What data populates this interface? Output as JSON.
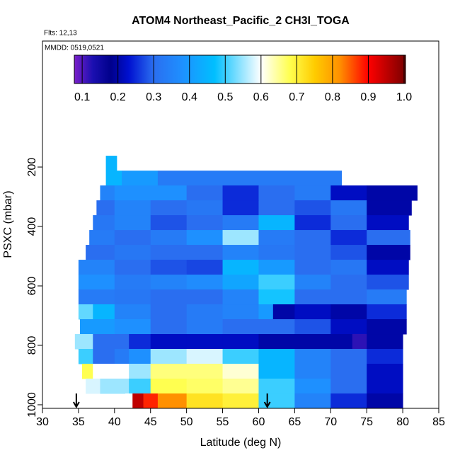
{
  "chart_data": {
    "type": "curtain",
    "title": "ATOM4 Northeast_Pacific_2 CH3I_TOGA",
    "subtitle": "Flts: 12,13",
    "annotation": "MMDD: 0519,0521",
    "x_label": "Latitude (deg N)",
    "y_label": "PSXC (mbar)",
    "xlim": [
      30,
      85
    ],
    "xticks": [
      30,
      35,
      40,
      45,
      50,
      55,
      60,
      65,
      70,
      75,
      80,
      85
    ],
    "ylim": [
      1012,
      -224
    ],
    "yticks": [
      200,
      400,
      600,
      800,
      1000
    ],
    "colorbar": {
      "range": [
        0.078,
        1.004
      ],
      "ticks": [
        0.1,
        0.2,
        0.3,
        0.4,
        0.5,
        0.6,
        0.7,
        0.8,
        0.9,
        {
          "value": 1,
          "label": "1.0"
        }
      ],
      "color_stops": [
        [
          0.078,
          "#7a1fc9"
        ],
        [
          0.13,
          "#1a0fb0"
        ],
        [
          0.18,
          "#00008b"
        ],
        [
          0.23,
          "#0010d0"
        ],
        [
          0.3,
          "#2a6ef0"
        ],
        [
          0.38,
          "#1e90ff"
        ],
        [
          0.47,
          "#00bfff"
        ],
        [
          0.6,
          "#ffffff"
        ],
        [
          0.68,
          "#ffff50"
        ],
        [
          0.75,
          "#ffcc00"
        ],
        [
          0.82,
          "#ff9000"
        ],
        [
          0.9,
          "#ff0000"
        ],
        [
          1.004,
          "#7a0000"
        ]
      ]
    },
    "rows": [
      {
        "p": [
          162,
          212
        ],
        "bins": [
          38.8,
          40.3
        ],
        "values": [
          0.45
        ]
      },
      {
        "p": [
          212,
          262
        ],
        "bins": [
          38.8,
          41,
          46,
          71.5
        ],
        "values": [
          0.45,
          0.4,
          0.33
        ]
      },
      {
        "p": [
          262,
          312
        ],
        "bins": [
          38,
          40,
          45,
          50,
          55,
          60,
          65,
          70,
          75,
          82
        ],
        "values": [
          0.35,
          0.38,
          0.38,
          0.3,
          0.25,
          0.3,
          0.33,
          0.22,
          0.2
        ]
      },
      {
        "p": [
          312,
          362
        ],
        "bins": [
          37.5,
          40,
          45,
          50,
          55,
          60,
          65,
          70,
          75,
          81.2
        ],
        "values": [
          0.3,
          0.35,
          0.3,
          0.32,
          0.25,
          0.3,
          0.28,
          0.32,
          0.2
        ]
      },
      {
        "p": [
          362,
          412
        ],
        "bins": [
          37,
          40,
          45,
          50,
          55,
          60,
          65,
          70,
          75,
          80.8
        ],
        "values": [
          0.32,
          0.35,
          0.28,
          0.3,
          0.33,
          0.45,
          0.25,
          0.3,
          0.22
        ]
      },
      {
        "p": [
          412,
          462
        ],
        "bins": [
          36.5,
          40,
          45,
          50,
          55,
          60,
          65,
          70,
          75,
          81
        ],
        "values": [
          0.33,
          0.3,
          0.33,
          0.38,
          0.55,
          0.33,
          0.3,
          0.25,
          0.3
        ]
      },
      {
        "p": [
          462,
          512
        ],
        "bins": [
          36,
          40,
          45,
          50,
          55,
          60,
          65,
          70,
          75,
          81
        ],
        "values": [
          0.3,
          0.32,
          0.3,
          0.3,
          0.35,
          0.32,
          0.3,
          0.28,
          0.2
        ]
      },
      {
        "p": [
          512,
          562
        ],
        "bins": [
          35,
          40,
          45,
          50,
          55,
          60,
          65,
          70,
          75,
          80.8
        ],
        "values": [
          0.35,
          0.3,
          0.28,
          0.27,
          0.45,
          0.4,
          0.3,
          0.32,
          0.22
        ]
      },
      {
        "p": [
          562,
          612
        ],
        "bins": [
          35,
          40,
          45,
          50,
          55,
          60,
          65,
          70,
          75,
          80.8
        ],
        "values": [
          0.38,
          0.33,
          0.35,
          0.37,
          0.42,
          0.5,
          0.35,
          0.3,
          0.28
        ]
      },
      {
        "p": [
          612,
          662
        ],
        "bins": [
          35,
          40,
          45,
          50,
          55,
          60,
          65,
          70,
          75,
          80.5
        ],
        "values": [
          0.33,
          0.32,
          0.3,
          0.3,
          0.35,
          0.48,
          0.3,
          0.3,
          0.33
        ]
      },
      {
        "p": [
          662,
          712
        ],
        "bins": [
          35,
          37,
          40,
          45,
          50,
          55,
          60,
          62,
          65,
          70,
          75,
          80.5
        ],
        "values": [
          0.52,
          0.45,
          0.35,
          0.3,
          0.33,
          0.35,
          0.4,
          0.2,
          0.22,
          0.2,
          0.25
        ]
      },
      {
        "p": [
          712,
          762
        ],
        "bins": [
          35.2,
          40,
          45,
          50,
          55,
          60,
          65,
          70,
          75,
          80.5
        ],
        "values": [
          0.4,
          0.38,
          0.3,
          0.33,
          0.3,
          0.3,
          0.28,
          0.22,
          0.2
        ]
      },
      {
        "p": [
          762,
          812
        ],
        "bins": [
          34.5,
          37,
          42,
          45,
          50,
          55,
          60,
          65,
          70,
          73,
          75,
          80
        ],
        "values": [
          0.55,
          0.3,
          0.25,
          0.22,
          0.22,
          0.22,
          0.2,
          0.2,
          0.2,
          0.12,
          0.2
        ]
      },
      {
        "p": [
          812,
          862
        ],
        "bins": [
          35,
          37,
          40,
          42,
          45,
          50,
          55,
          60,
          65,
          70,
          75,
          80
        ],
        "values": [
          0.5,
          0.3,
          0.33,
          0.38,
          0.55,
          0.58,
          0.5,
          0.45,
          0.35,
          0.3,
          0.25
        ]
      },
      {
        "p": [
          862,
          912
        ],
        "bins": [
          35.5,
          37,
          42,
          45,
          50,
          55,
          60,
          65,
          70,
          75,
          80
        ],
        "values": [
          0.68,
          0.6,
          0.55,
          0.66,
          0.66,
          0.62,
          0.45,
          0.35,
          0.3,
          0.22
        ]
      },
      {
        "p": [
          912,
          962
        ],
        "bins": [
          36,
          38,
          42,
          45,
          50,
          55,
          60,
          65,
          70,
          75,
          80
        ],
        "values": [
          0.58,
          0.55,
          0.5,
          0.68,
          0.67,
          0.65,
          0.5,
          0.38,
          0.3,
          0.22
        ]
      },
      {
        "p": [
          962,
          1012
        ],
        "bins": [
          41.5,
          42.5,
          44,
          46,
          50,
          55,
          60,
          65,
          70,
          75,
          80
        ],
        "values": [
          0.6,
          0.95,
          0.88,
          0.82,
          0.72,
          0.7,
          0.5,
          0.35,
          0.25,
          0.2
        ]
      }
    ],
    "arrows_lat": [
      34.7,
      61.2
    ]
  }
}
